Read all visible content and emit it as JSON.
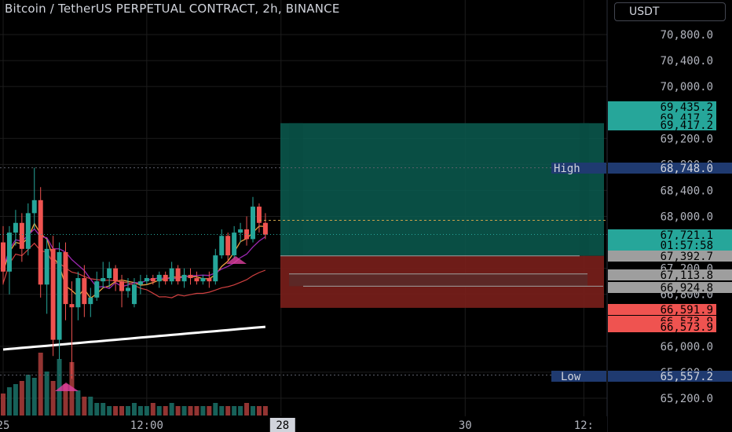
{
  "header": {
    "title": "Bitcoin / TetherUS PERPETUAL CONTRACT, 2h, BINANCE",
    "currency": "USDT"
  },
  "colors": {
    "up": "#26a69a",
    "down": "#ef5350",
    "background": "#000000",
    "grid": "#1c1c1c",
    "text": "#b2b5be",
    "profit_zone": "#0a5c50",
    "loss_zone": "#7a1f1b",
    "ma_orange": "#f0a040",
    "ma_purple": "#9c27b0",
    "ma_red": "#d04040",
    "ma_white": "#ffffff"
  },
  "chart_data": {
    "type": "candlestick",
    "y_axis": {
      "range": [
        64900,
        71300
      ],
      "ticks": [
        "70,800.0",
        "70,400.0",
        "70,000.0",
        "69,200.0",
        "68,800.0",
        "68,400.0",
        "68,000.0",
        "67,200.0",
        "66,800.0",
        "66,000.0",
        "65,600.0",
        "65,200.0"
      ],
      "tick_values": [
        70800,
        70400,
        70000,
        69200,
        68800,
        68400,
        68000,
        67200,
        66800,
        66000,
        65600,
        65200
      ]
    },
    "x_axis": {
      "labels": [
        "25",
        "12:00",
        "28",
        "30",
        "12:"
      ],
      "label_bars": [
        0,
        23,
        44.5,
        74,
        93
      ]
    },
    "candles": [
      {
        "o": 67600,
        "h": 67850,
        "l": 66950,
        "c": 67150
      },
      {
        "o": 67150,
        "h": 67850,
        "l": 66800,
        "c": 67750
      },
      {
        "o": 67750,
        "h": 68100,
        "l": 67550,
        "c": 67900
      },
      {
        "o": 67900,
        "h": 68050,
        "l": 67300,
        "c": 67500
      },
      {
        "o": 67500,
        "h": 68200,
        "l": 67400,
        "c": 68050
      },
      {
        "o": 68050,
        "h": 68750,
        "l": 67800,
        "c": 68250
      },
      {
        "o": 68250,
        "h": 68450,
        "l": 66750,
        "c": 66950
      },
      {
        "o": 66950,
        "h": 67650,
        "l": 66500,
        "c": 67500
      },
      {
        "o": 67500,
        "h": 67700,
        "l": 65850,
        "c": 66100
      },
      {
        "o": 66100,
        "h": 67600,
        "l": 65800,
        "c": 67450
      },
      {
        "o": 67450,
        "h": 67600,
        "l": 66400,
        "c": 66650
      },
      {
        "o": 66650,
        "h": 67000,
        "l": 65500,
        "c": 66600
      },
      {
        "o": 66600,
        "h": 67150,
        "l": 66400,
        "c": 67050
      },
      {
        "o": 67050,
        "h": 67250,
        "l": 66450,
        "c": 66650
      },
      {
        "o": 66650,
        "h": 66900,
        "l": 66450,
        "c": 66750
      },
      {
        "o": 66750,
        "h": 67150,
        "l": 66700,
        "c": 67000
      },
      {
        "o": 67000,
        "h": 67300,
        "l": 66900,
        "c": 67050
      },
      {
        "o": 67050,
        "h": 67300,
        "l": 66900,
        "c": 67200
      },
      {
        "o": 67200,
        "h": 67250,
        "l": 66850,
        "c": 67000
      },
      {
        "o": 67000,
        "h": 67100,
        "l": 66600,
        "c": 66850
      },
      {
        "o": 66850,
        "h": 67050,
        "l": 66750,
        "c": 66900
      },
      {
        "o": 66650,
        "h": 67050,
        "l": 66600,
        "c": 66950
      },
      {
        "o": 66950,
        "h": 67100,
        "l": 66800,
        "c": 67000
      },
      {
        "o": 67000,
        "h": 67100,
        "l": 66950,
        "c": 67050
      },
      {
        "o": 67050,
        "h": 67100,
        "l": 66950,
        "c": 67000
      },
      {
        "o": 67000,
        "h": 67150,
        "l": 66900,
        "c": 67100
      },
      {
        "o": 67100,
        "h": 67150,
        "l": 66950,
        "c": 67000
      },
      {
        "o": 67000,
        "h": 67300,
        "l": 66950,
        "c": 67200
      },
      {
        "o": 67200,
        "h": 67250,
        "l": 66950,
        "c": 67000
      },
      {
        "o": 67000,
        "h": 67200,
        "l": 66900,
        "c": 67100
      },
      {
        "o": 67100,
        "h": 67200,
        "l": 66950,
        "c": 67050
      },
      {
        "o": 67050,
        "h": 67150,
        "l": 66950,
        "c": 67000
      },
      {
        "o": 67000,
        "h": 67100,
        "l": 66950,
        "c": 67050
      },
      {
        "o": 67050,
        "h": 67150,
        "l": 66900,
        "c": 67000
      },
      {
        "o": 67000,
        "h": 67500,
        "l": 66950,
        "c": 67400
      },
      {
        "o": 67400,
        "h": 67800,
        "l": 67350,
        "c": 67700
      },
      {
        "o": 67700,
        "h": 67750,
        "l": 67300,
        "c": 67400
      },
      {
        "o": 67400,
        "h": 67850,
        "l": 67350,
        "c": 67750
      },
      {
        "o": 67750,
        "h": 67900,
        "l": 67600,
        "c": 67800
      },
      {
        "o": 67800,
        "h": 68000,
        "l": 67550,
        "c": 67650
      },
      {
        "o": 67650,
        "h": 68300,
        "l": 67600,
        "c": 68150
      },
      {
        "o": 68150,
        "h": 68200,
        "l": 67750,
        "c": 67900
      },
      {
        "o": 67900,
        "h": 68050,
        "l": 67650,
        "c": 67720
      }
    ],
    "volumes": [
      7,
      9,
      10,
      11,
      13,
      12,
      20,
      14,
      11,
      18,
      10,
      17,
      8,
      6,
      6,
      4,
      4,
      3,
      3,
      3,
      3,
      4,
      3,
      3,
      4,
      3,
      3,
      4,
      3,
      3,
      3,
      3,
      3,
      3,
      4,
      3,
      3,
      3,
      3,
      4,
      3,
      3,
      3
    ],
    "price_labels": [
      {
        "text": "69,435.2",
        "value": 69435.2,
        "kind": "up"
      },
      {
        "text": "69,417.2",
        "value": 69417.2,
        "kind": "up"
      },
      {
        "text": "69,417.2",
        "value": 69417.2,
        "kind": "up"
      },
      {
        "text": "68,748.0",
        "value": 68748.0,
        "kind": "high"
      },
      {
        "text": "67,721.1",
        "value": 67721.1,
        "kind": "last"
      },
      {
        "text": "01:57:58",
        "value": 67721.1,
        "kind": "countdown"
      },
      {
        "text": "67,392.7",
        "value": 67392.7,
        "kind": "gray"
      },
      {
        "text": "67,113.8",
        "value": 67113.8,
        "kind": "gray"
      },
      {
        "text": "66,924.8",
        "value": 66924.8,
        "kind": "gray"
      },
      {
        "text": "66,591.9",
        "value": 66591.9,
        "kind": "down"
      },
      {
        "text": "66,573.9",
        "value": 66573.9,
        "kind": "down"
      },
      {
        "text": "66,573.9",
        "value": 66573.9,
        "kind": "down"
      },
      {
        "text": "65,557.2",
        "value": 65557.2,
        "kind": "low"
      }
    ],
    "high": {
      "label": "High",
      "value": 68748.0
    },
    "low": {
      "label": "Low",
      "value": 65557.2
    },
    "position": {
      "target": 69435.2,
      "entry": 67392.7,
      "stop": 66591.9,
      "levels": [
        67113.8,
        66924.8
      ]
    },
    "current_price_dashed": 67940
  }
}
